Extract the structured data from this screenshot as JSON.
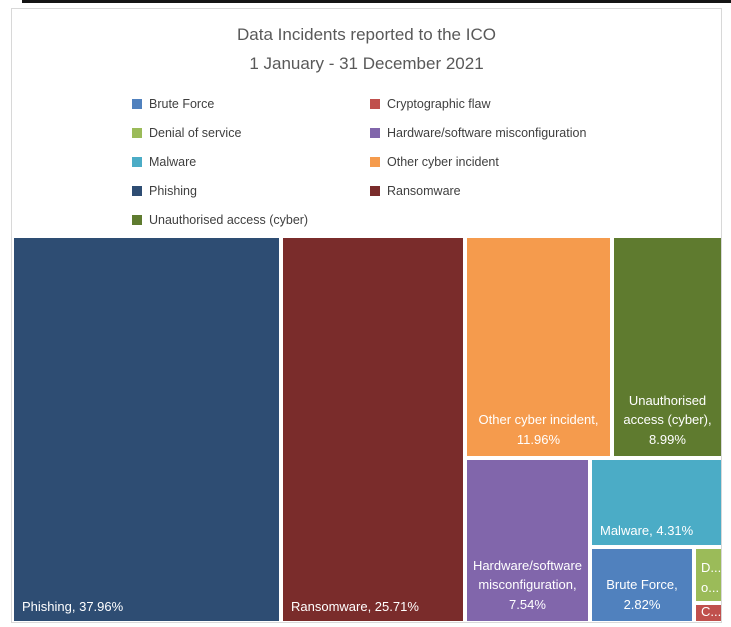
{
  "chart_data": {
    "type": "treemap",
    "title": "Data Incidents reported to the ICO",
    "subtitle": "1 January - 31 December 2021",
    "unit": "%",
    "legend_position": "top",
    "series": [
      {
        "name": "Phishing",
        "value": 37.96,
        "color": "#2e4d73",
        "label": "Phishing, 37.96%"
      },
      {
        "name": "Ransomware",
        "value": 25.71,
        "color": "#7a2c2b",
        "label": "Ransomware, 25.71%"
      },
      {
        "name": "Other cyber incident",
        "value": 11.96,
        "color": "#f59b4d",
        "label": "Other cyber incident,\n11.96%"
      },
      {
        "name": "Unauthorised access (cyber)",
        "value": 8.99,
        "color": "#5f7b2f",
        "label": "Unauthorised\naccess (cyber),\n8.99%"
      },
      {
        "name": "Hardware/software misconfiguration",
        "value": 7.54,
        "color": "#8166ab",
        "label": "Hardware/software\nmisconfiguration,\n7.54%"
      },
      {
        "name": "Malware",
        "value": 4.31,
        "color": "#4bacc6",
        "label": "Malware, 4.31%"
      },
      {
        "name": "Brute Force",
        "value": 2.82,
        "color": "#5081be",
        "label": "Brute Force,\n2.82%"
      },
      {
        "name": "Denial of service",
        "value": 0.55,
        "color": "#9bbb59",
        "label": "D...\no..."
      },
      {
        "name": "Cryptographic flaw",
        "value": 0.16,
        "color": "#c0504d",
        "label": "C..."
      }
    ],
    "legend": [
      {
        "label": "Brute Force",
        "color": "#5081be"
      },
      {
        "label": "Cryptographic flaw",
        "color": "#c0504d"
      },
      {
        "label": "Denial of service",
        "color": "#9bbb59"
      },
      {
        "label": "Hardware/software misconfiguration",
        "color": "#8166ab"
      },
      {
        "label": "Malware",
        "color": "#4bacc6"
      },
      {
        "label": "Other cyber incident",
        "color": "#f59b4d"
      },
      {
        "label": "Phishing",
        "color": "#2e4d73"
      },
      {
        "label": "Ransomware",
        "color": "#7a2c2b"
      },
      {
        "label": "Unauthorised access (cyber)",
        "color": "#5f7b2f"
      }
    ]
  }
}
